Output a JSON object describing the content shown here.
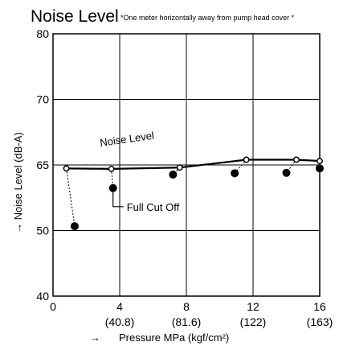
{
  "chart_data": {
    "type": "line",
    "title": "Noise Level",
    "title_note": "*One meter horizontally away from pump head cover  *",
    "xlabel": "Pressure MPa (kgf/cm²)",
    "xlabel_arrow": "→",
    "ylabel": "→ Noise Level  (dB-A)",
    "xlim": [
      0,
      16
    ],
    "y_ticks": [
      "40",
      "50",
      "65",
      "70",
      "80"
    ],
    "x_ticks": [
      {
        "value": 0,
        "label": "0",
        "sublabel": ""
      },
      {
        "value": 4,
        "label": "4",
        "sublabel": "(40.8)"
      },
      {
        "value": 8,
        "label": "8",
        "sublabel": "(81.6)"
      },
      {
        "value": 12,
        "label": "12",
        "sublabel": "(122)"
      },
      {
        "value": 16,
        "label": "16",
        "sublabel": "(163)"
      }
    ],
    "grid": true,
    "series": [
      {
        "name": "Noise Level",
        "marker": "open-circle",
        "style": "solid",
        "x": [
          0.8,
          3.5,
          7.6,
          11.6,
          14.6,
          16.0
        ],
        "y": [
          64.2,
          64.1,
          64.4,
          65.4,
          65.4,
          65.3
        ]
      },
      {
        "name": "Full Cut Off",
        "marker": "filled-circle",
        "style": "points",
        "x": [
          1.3,
          3.6,
          7.2,
          10.9,
          14.0,
          16.0
        ],
        "y": [
          51.0,
          59.7,
          62.8,
          63.1,
          63.2,
          64.2
        ]
      }
    ],
    "annotations": [
      {
        "text": "Noise Level",
        "target": "series-0"
      },
      {
        "text": "Full Cut Off",
        "target": "series-1"
      }
    ]
  }
}
